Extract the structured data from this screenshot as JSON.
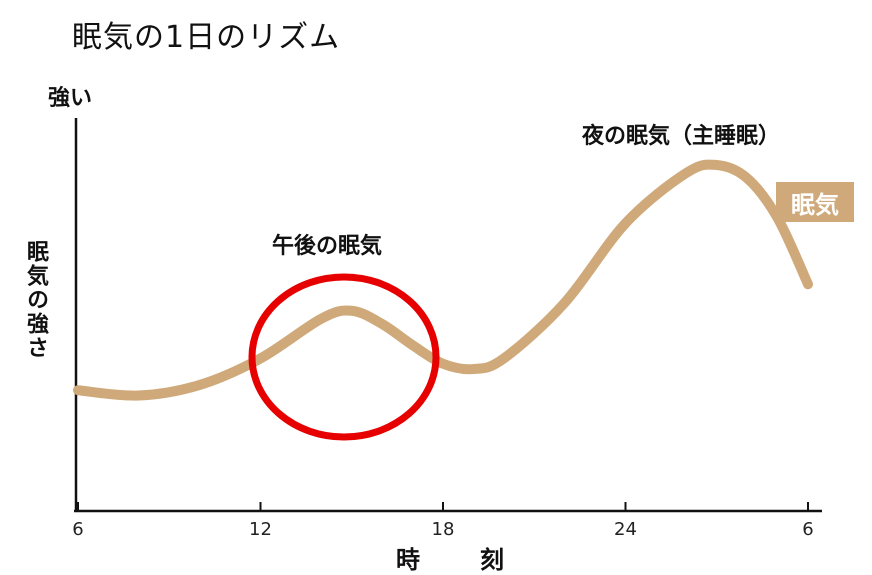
{
  "chart_data": {
    "type": "line",
    "title": "眠気の1日のリズム",
    "ylabel_top": "強い",
    "ylabel": "眠気の強さ",
    "xlabel": "時　刻",
    "x_ticks": [
      "6",
      "12",
      "18",
      "24",
      "6"
    ],
    "xlim_hours": [
      6,
      30
    ],
    "series": [
      {
        "name": "眠気",
        "color": "#cfa97a",
        "x": [
          6,
          8,
          10,
          12,
          14,
          15,
          16,
          17,
          18,
          19,
          20,
          22,
          24,
          26,
          27,
          28,
          29,
          30
        ],
        "y": [
          0.15,
          0.13,
          0.17,
          0.27,
          0.42,
          0.45,
          0.4,
          0.32,
          0.25,
          0.23,
          0.27,
          0.48,
          0.78,
          0.97,
          1.0,
          0.95,
          0.8,
          0.55
        ]
      }
    ],
    "annotations": [
      "午後の眠気",
      "夜の眠気（主睡眠）"
    ],
    "highlight_color": "#e60000"
  }
}
